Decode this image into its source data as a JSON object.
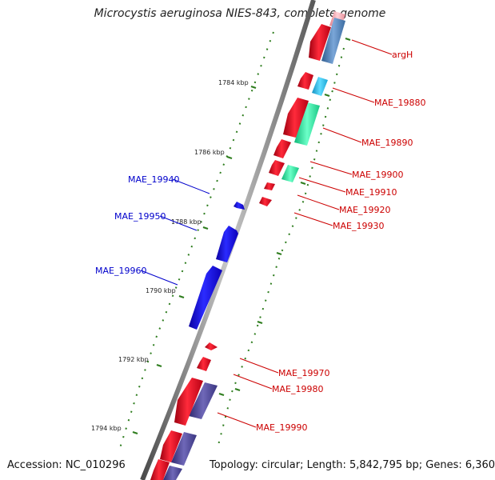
{
  "title": "Microcystis aeruginosa NIES-843, complete genome",
  "footer": {
    "accession": "Accession: NC_010296",
    "topology": "Topology: circular; Length: 5,842,795 bp; Genes: 6,360"
  },
  "colors": {
    "forward_cds": "#e8001a",
    "reverse_cds": "#1100e8",
    "forward_label": "#cc0000",
    "reverse_label": "#0000cc",
    "tick": "#2e7d1e",
    "backbone": "#6e6e6e",
    "rna_light_blue": "#2ec6ee",
    "rna_green": "#2ee8a0",
    "rna_steel": "#4f7fb5",
    "rna_purple": "#504a90",
    "rna_pink": "#f2a8b0"
  },
  "kbp_labels": [
    "1784 kbp",
    "1786 kbp",
    "1788 kbp",
    "1790 kbp",
    "1792 kbp",
    "1794 kbp"
  ],
  "forward_genes": [
    {
      "name": "argH",
      "position_kbp": 1782.7
    },
    {
      "name": "MAE_19880",
      "position_kbp": 1784.2
    },
    {
      "name": "MAE_19890",
      "position_kbp": 1785.1
    },
    {
      "name": "MAE_19900",
      "position_kbp": 1786.1
    },
    {
      "name": "MAE_19910",
      "position_kbp": 1786.6
    },
    {
      "name": "MAE_19920",
      "position_kbp": 1787.1
    },
    {
      "name": "MAE_19930",
      "position_kbp": 1787.4
    },
    {
      "name": "MAE_19970",
      "position_kbp": 1791.7
    },
    {
      "name": "MAE_19980",
      "position_kbp": 1792.3
    },
    {
      "name": "MAE_19990",
      "position_kbp": 1793.4
    }
  ],
  "reverse_genes": [
    {
      "name": "MAE_19940",
      "position_kbp": 1787.3
    },
    {
      "name": "MAE_19950",
      "position_kbp": 1788.4
    },
    {
      "name": "MAE_19960",
      "position_kbp": 1789.9
    }
  ]
}
